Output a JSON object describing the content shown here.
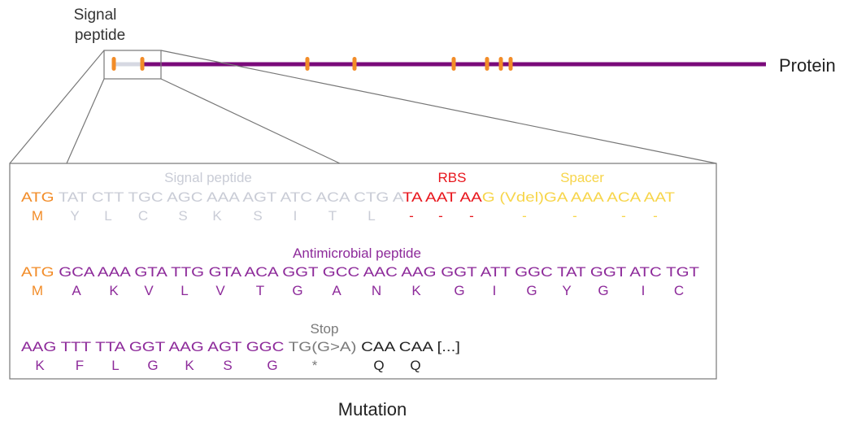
{
  "labels": {
    "signal_peptide_top_line1": "Signal",
    "signal_peptide_top_line2": "peptide",
    "protein": "Protein",
    "mutation": "Mutation"
  },
  "sections": {
    "signal_peptide": "Signal peptide",
    "rbs": "RBS",
    "spacer": "Spacer",
    "antimicrobial_peptide": "Antimicrobial peptide",
    "stop": "Stop"
  },
  "colors": {
    "purple": "#8d2a9a",
    "orange": "#f28c28",
    "grey_light": "#c9ccd6",
    "red": "#e8161d",
    "yellow": "#f7d54a",
    "grey_dark": "#7a7a7a",
    "black": "#222222",
    "bar_purple": "#7a0a7a"
  },
  "row1_dna": [
    {
      "text": "ATG",
      "color": "orange"
    },
    {
      "text": " TAT CTT TGC AGC AAA AGT ATC ACA CTG A",
      "color": "grey_light"
    },
    {
      "text": "TA AAT AA",
      "color": "red"
    },
    {
      "text": "G (Vdel)GA AAA ACA AAT",
      "color": "yellow"
    }
  ],
  "row1_aa": [
    {
      "text": "M",
      "color": "orange"
    },
    {
      "text": "Y",
      "color": "grey_light"
    },
    {
      "text": "L",
      "color": "grey_light"
    },
    {
      "text": "C",
      "color": "grey_light"
    },
    {
      "text": "S",
      "color": "grey_light"
    },
    {
      "text": "K",
      "color": "grey_light"
    },
    {
      "text": "S",
      "color": "grey_light"
    },
    {
      "text": "I",
      "color": "grey_light"
    },
    {
      "text": "T",
      "color": "grey_light"
    },
    {
      "text": "L",
      "color": "grey_light"
    },
    {
      "text": "-",
      "color": "red"
    },
    {
      "text": "-",
      "color": "red"
    },
    {
      "text": "-",
      "color": "red"
    },
    {
      "text": "-",
      "color": "yellow"
    },
    {
      "text": "-",
      "color": "yellow"
    },
    {
      "text": "-",
      "color": "yellow"
    },
    {
      "text": "-",
      "color": "yellow"
    }
  ],
  "row2_dna": [
    {
      "text": "ATG",
      "color": "orange"
    },
    {
      "text": " GCA AAA GTA TTG GTA ACA GGT GCC AAC AAG GGT ATT GGC TAT GGT ATC TGT",
      "color": "purple"
    }
  ],
  "row2_aa": [
    {
      "text": "M",
      "color": "orange"
    },
    {
      "text": "A",
      "color": "purple"
    },
    {
      "text": "K",
      "color": "purple"
    },
    {
      "text": "V",
      "color": "purple"
    },
    {
      "text": "L",
      "color": "purple"
    },
    {
      "text": "V",
      "color": "purple"
    },
    {
      "text": "T",
      "color": "purple"
    },
    {
      "text": "G",
      "color": "purple"
    },
    {
      "text": "A",
      "color": "purple"
    },
    {
      "text": "N",
      "color": "purple"
    },
    {
      "text": "K",
      "color": "purple"
    },
    {
      "text": "G",
      "color": "purple"
    },
    {
      "text": "I",
      "color": "purple"
    },
    {
      "text": "G",
      "color": "purple"
    },
    {
      "text": "Y",
      "color": "purple"
    },
    {
      "text": "G",
      "color": "purple"
    },
    {
      "text": "I",
      "color": "purple"
    },
    {
      "text": "C",
      "color": "purple"
    }
  ],
  "row3_dna": [
    {
      "text": "AAG TTT TTA GGT AAG AGT GGC ",
      "color": "purple"
    },
    {
      "text": "TG(G>A)",
      "color": "grey_dark"
    },
    {
      "text": " CAA CAA [...]",
      "color": "black"
    }
  ],
  "row3_aa": [
    {
      "text": "K",
      "color": "purple"
    },
    {
      "text": "F",
      "color": "purple"
    },
    {
      "text": "L",
      "color": "purple"
    },
    {
      "text": "G",
      "color": "purple"
    },
    {
      "text": "K",
      "color": "purple"
    },
    {
      "text": "S",
      "color": "purple"
    },
    {
      "text": "G",
      "color": "purple"
    },
    {
      "text": "*",
      "color": "grey_dark"
    },
    {
      "text": "Q",
      "color": "black"
    },
    {
      "text": "Q",
      "color": "black"
    }
  ]
}
